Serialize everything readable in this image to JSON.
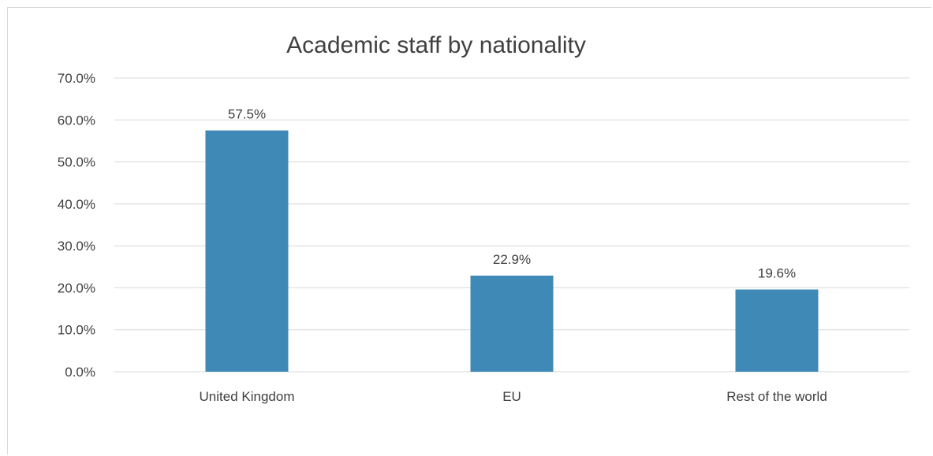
{
  "colors": {
    "bar": "#3f89b6",
    "grid": "#d9d9d9",
    "text": "#404040",
    "title": "#404040"
  },
  "chart_data": {
    "type": "bar",
    "title": "Academic staff by nationality",
    "categories": [
      "United Kingdom",
      "EU",
      "Rest of the world"
    ],
    "values": [
      57.5,
      22.9,
      19.6
    ],
    "value_labels": [
      "57.5%",
      "22.9%",
      "19.6%"
    ],
    "xlabel": "",
    "ylabel": "",
    "ylim": [
      0,
      70
    ],
    "y_ticks": [
      0,
      10,
      20,
      30,
      40,
      50,
      60,
      70
    ],
    "y_tick_labels": [
      "0.0%",
      "10.0%",
      "20.0%",
      "30.0%",
      "40.0%",
      "50.0%",
      "60.0%",
      "70.0%"
    ],
    "grid": true,
    "legend": "none"
  }
}
